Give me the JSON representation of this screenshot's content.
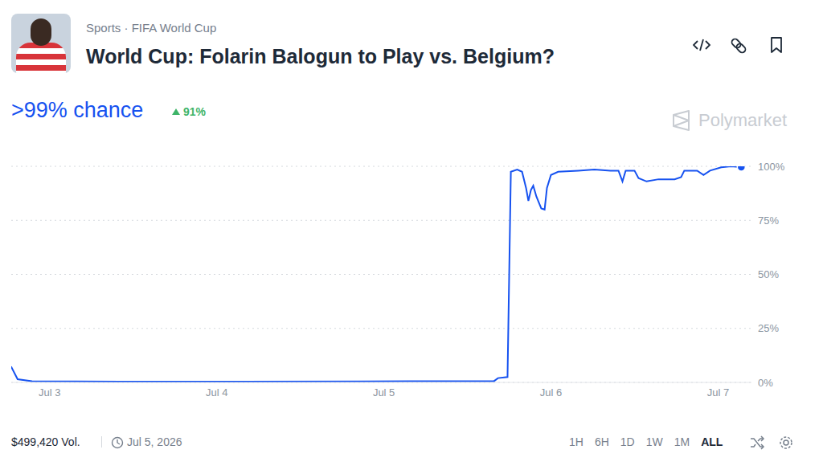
{
  "header": {
    "breadcrumb": "Sports · FIFA World Cup",
    "title": "World Cup: Folarin Balogun to Play vs. Belgium?",
    "chance": ">99% chance",
    "change": "91%",
    "watermark": "Polymarket"
  },
  "chart_data": {
    "type": "line",
    "x": [
      2.769,
      2.808,
      2.894,
      3.423,
      4.144,
      4.865,
      5.659,
      5.683,
      5.74,
      5.76,
      5.798,
      5.827,
      5.851,
      5.865,
      5.88,
      5.894,
      5.913,
      5.942,
      5.962,
      5.976,
      6.0,
      6.043,
      6.163,
      6.26,
      6.356,
      6.404,
      6.428,
      6.447,
      6.5,
      6.524,
      6.572,
      6.644,
      6.74,
      6.779,
      6.798,
      6.875,
      6.913,
      6.952,
      7.019,
      7.077,
      7.139
    ],
    "values": [
      7.4,
      1.5,
      0.6,
      0.4,
      0.4,
      0.5,
      0.6,
      2.0,
      2.5,
      97.5,
      98.5,
      97.5,
      90,
      84,
      89,
      91,
      86,
      80.5,
      80,
      90,
      96,
      97.5,
      98,
      98.5,
      98,
      98,
      93,
      98,
      98,
      94.5,
      93,
      94,
      94,
      95,
      98,
      98,
      96,
      98,
      99.5,
      100,
      99.6
    ],
    "color": "#1652f0",
    "xlim": [
      2.77,
      7.2
    ],
    "xticks": [
      {
        "value": 3,
        "label": "Jul 3"
      },
      {
        "value": 4,
        "label": "Jul 4"
      },
      {
        "value": 5,
        "label": "Jul 5"
      },
      {
        "value": 6,
        "label": "Jul 6"
      },
      {
        "value": 7,
        "label": "Jul 7"
      }
    ],
    "ylim": [
      0,
      100
    ],
    "yticks": [
      {
        "value": 0,
        "label": "0%"
      },
      {
        "value": 25,
        "label": "25%"
      },
      {
        "value": 50,
        "label": "50%"
      },
      {
        "value": 75,
        "label": "75%"
      },
      {
        "value": 100,
        "label": "100%"
      }
    ],
    "grid": true
  },
  "footer": {
    "volume": "$499,420 Vol.",
    "date": "Jul 5, 2026",
    "ranges": [
      "1H",
      "6H",
      "1D",
      "1W",
      "1M",
      "ALL"
    ],
    "active_range": "ALL"
  }
}
